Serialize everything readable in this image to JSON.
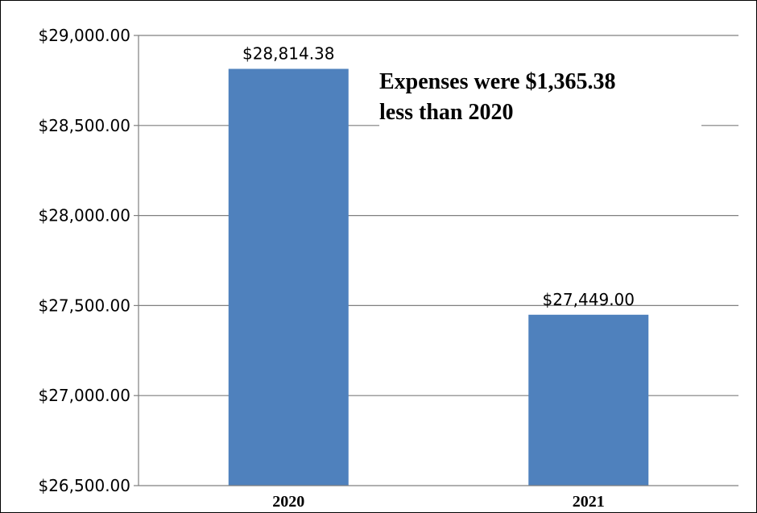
{
  "chart_data": {
    "type": "bar",
    "categories": [
      "2020",
      "2021"
    ],
    "values": [
      28814.38,
      27449.0
    ],
    "value_labels": [
      "$28,814.38",
      "$27,449.00"
    ],
    "ylim": [
      26500,
      29000
    ],
    "yticks": [
      26500,
      27000,
      27500,
      28000,
      28500,
      29000
    ],
    "ytick_labels": [
      "$26,500.00",
      "$27,000.00",
      "$27,500.00",
      "$28,000.00",
      "$28,500.00",
      "$29,000.00"
    ],
    "grid": true,
    "legend": "none",
    "annotation": [
      "Expenses were $1,365.38",
      "less than 2020"
    ],
    "colors": {
      "bar": "#4F81BD",
      "grid": "#7F7F7F",
      "axis": "#7F7F7F",
      "text": "#000000"
    }
  }
}
